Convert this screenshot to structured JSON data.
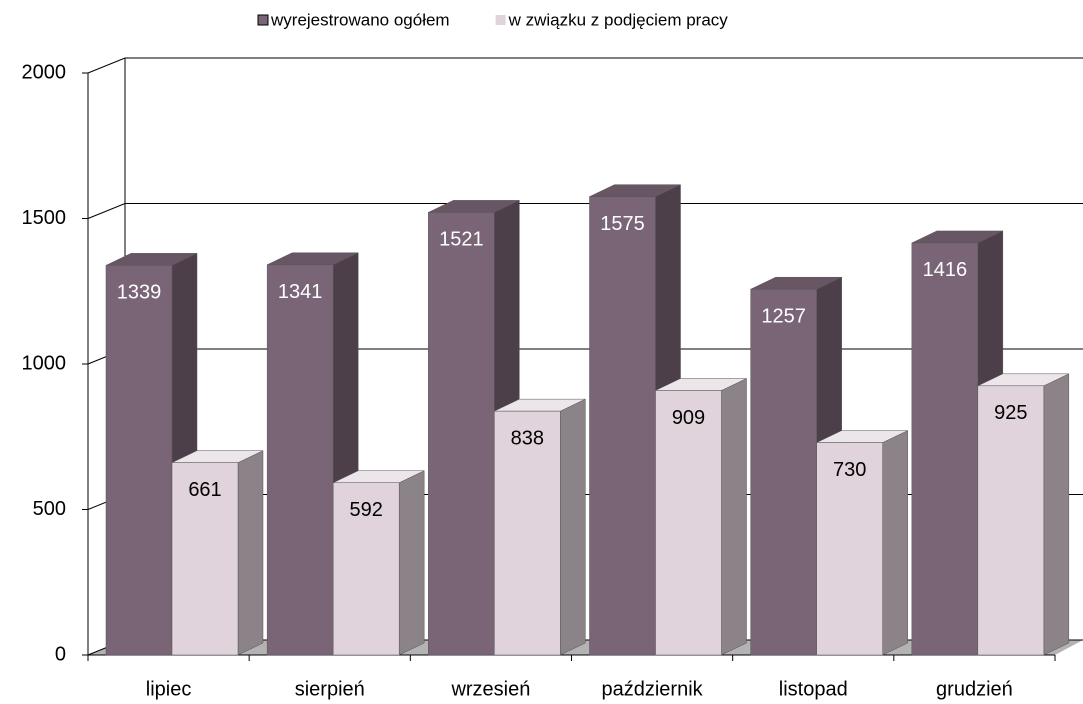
{
  "chart_data": {
    "type": "bar3d",
    "categories": [
      "lipiec",
      "sierpień",
      "wrzesień",
      "październik",
      "listopad",
      "grudzień"
    ],
    "series": [
      {
        "name": "wyrejestrowano ogółem",
        "color": "#7a6577",
        "values": [
          1339,
          1341,
          1521,
          1575,
          1257,
          1416
        ]
      },
      {
        "name": "w związku z podjęciem pracy",
        "color": "#e0d3dc",
        "values": [
          661,
          592,
          838,
          909,
          730,
          925
        ]
      }
    ],
    "ylim": [
      0,
      2000
    ],
    "yticks": [
      0,
      500,
      1000,
      1500,
      2000
    ],
    "grid": true,
    "legend": "top"
  }
}
